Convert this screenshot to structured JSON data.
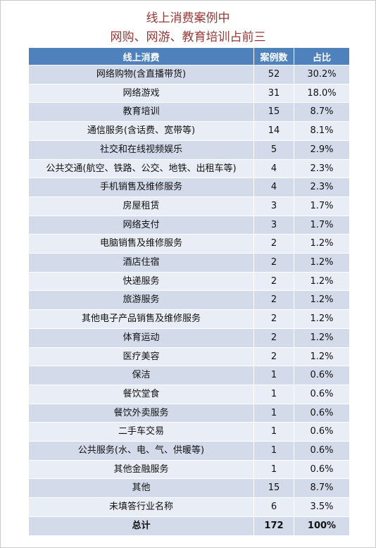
{
  "title_line1": "线上消费案例中",
  "title_line2": "网购、网游、教育培训占前三",
  "table": {
    "headers": [
      "线上消费",
      "案例数",
      "占比"
    ],
    "rows": [
      {
        "category": "网络购物(含直播带货)",
        "count": "52",
        "share": "30.2%"
      },
      {
        "category": "网络游戏",
        "count": "31",
        "share": "18.0%"
      },
      {
        "category": "教育培训",
        "count": "15",
        "share": "8.7%"
      },
      {
        "category": "通信服务(含话费、宽带等)",
        "count": "14",
        "share": "8.1%"
      },
      {
        "category": "社交和在线视频娱乐",
        "count": "5",
        "share": "2.9%"
      },
      {
        "category": "公共交通(航空、铁路、公交、地铁、出租车等)",
        "count": "4",
        "share": "2.3%"
      },
      {
        "category": "手机销售及维修服务",
        "count": "4",
        "share": "2.3%"
      },
      {
        "category": "房屋租赁",
        "count": "3",
        "share": "1.7%"
      },
      {
        "category": "网络支付",
        "count": "3",
        "share": "1.7%"
      },
      {
        "category": "电脑销售及维修服务",
        "count": "2",
        "share": "1.2%"
      },
      {
        "category": "酒店住宿",
        "count": "2",
        "share": "1.2%"
      },
      {
        "category": "快递服务",
        "count": "2",
        "share": "1.2%"
      },
      {
        "category": "旅游服务",
        "count": "2",
        "share": "1.2%"
      },
      {
        "category": "其他电子产品销售及维修服务",
        "count": "2",
        "share": "1.2%"
      },
      {
        "category": "体育运动",
        "count": "2",
        "share": "1.2%"
      },
      {
        "category": "医疗美容",
        "count": "2",
        "share": "1.2%"
      },
      {
        "category": "保洁",
        "count": "1",
        "share": "0.6%"
      },
      {
        "category": "餐饮堂食",
        "count": "1",
        "share": "0.6%"
      },
      {
        "category": "餐饮外卖服务",
        "count": "1",
        "share": "0.6%"
      },
      {
        "category": "二手车交易",
        "count": "1",
        "share": "0.6%"
      },
      {
        "category": "公共服务(水、电、气、供暖等)",
        "count": "1",
        "share": "0.6%"
      },
      {
        "category": "其他金融服务",
        "count": "1",
        "share": "0.6%"
      },
      {
        "category": "其他",
        "count": "15",
        "share": "8.7%"
      },
      {
        "category": "未填答行业名称",
        "count": "6",
        "share": "3.5%"
      }
    ],
    "total": {
      "label": "总计",
      "count": "172",
      "share": "100%"
    }
  },
  "colors": {
    "title": "#953735",
    "header_bg": "#4f81bd",
    "band_dark": "#d3dbea",
    "band_light": "#e9edf5"
  }
}
